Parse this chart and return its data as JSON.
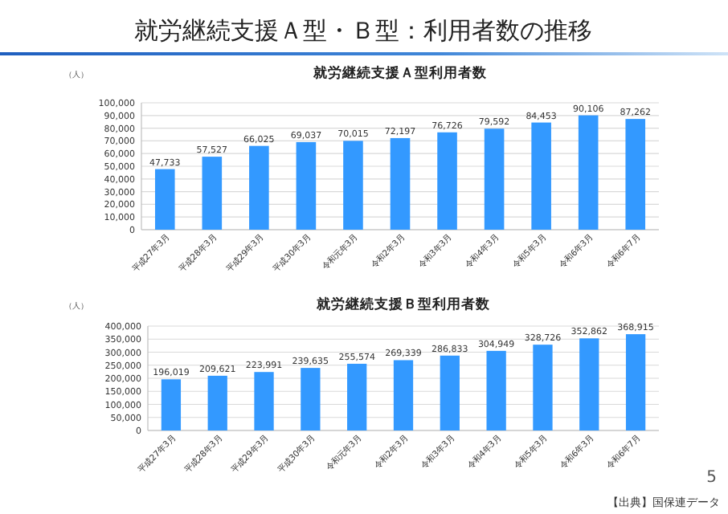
{
  "chart_data": [
    {
      "type": "bar",
      "title": "就労継続支援Ａ型利用者数",
      "ylabel": "（人）",
      "annotations": [
        "就労継続支援Ａ型・Ｂ型：利用者数の推移"
      ],
      "categories": [
        "平成27年3月",
        "平成28年3月",
        "平成29年3月",
        "平成30年3月",
        "令和元年3月",
        "令和2年3月",
        "令和3年3月",
        "令和4年3月",
        "令和5年3月",
        "令和6年3月",
        "令和6年7月"
      ],
      "values": [
        47733,
        57527,
        66025,
        69037,
        70015,
        72197,
        76726,
        79592,
        84453,
        90106,
        87262
      ],
      "value_labels": [
        "47,733",
        "57,527",
        "66,025",
        "69,037",
        "70,015",
        "72,197",
        "76,726",
        "79,592",
        "84,453",
        "90,106",
        "87,262"
      ],
      "color": "#3399ff",
      "ylim": [
        0,
        100000
      ],
      "yticks": [
        {
          "value": 0,
          "label": "0"
        },
        {
          "value": 10000,
          "label": "10,000"
        },
        {
          "value": 20000,
          "label": "20,000"
        },
        {
          "value": 30000,
          "label": "30,000"
        },
        {
          "value": 40000,
          "label": "40,000"
        },
        {
          "value": 50000,
          "label": "50,000"
        },
        {
          "value": 60000,
          "label": "60,000"
        },
        {
          "value": 70000,
          "label": "70,000"
        },
        {
          "value": 80000,
          "label": "80,000"
        },
        {
          "value": 90000,
          "label": "90,000"
        },
        {
          "value": 100000,
          "label": "100,000"
        }
      ],
      "grid": "y"
    },
    {
      "type": "bar",
      "title": "就労継続支援Ｂ型利用者数",
      "ylabel": "（人）",
      "annotations": [
        "【出典】国保連データ",
        "5"
      ],
      "categories": [
        "平成27年3月",
        "平成28年3月",
        "平成29年3月",
        "平成30年3月",
        "令和元年3月",
        "令和2年3月",
        "令和3年3月",
        "令和4年3月",
        "令和5年3月",
        "令和6年3月",
        "令和6年7月"
      ],
      "values": [
        196019,
        209621,
        223991,
        239635,
        255574,
        269339,
        286833,
        304949,
        328726,
        352862,
        368915
      ],
      "value_labels": [
        "196,019",
        "209,621",
        "223,991",
        "239,635",
        "255,574",
        "269,339",
        "286,833",
        "304,949",
        "328,726",
        "352,862",
        "368,915"
      ],
      "color": "#3399ff",
      "ylim": [
        0,
        400000
      ],
      "yticks": [
        {
          "value": 0,
          "label": "0"
        },
        {
          "value": 50000,
          "label": "50,000"
        },
        {
          "value": 100000,
          "label": "100,000"
        },
        {
          "value": 150000,
          "label": "150,000"
        },
        {
          "value": 200000,
          "label": "200,000"
        },
        {
          "value": 250000,
          "label": "250,000"
        },
        {
          "value": 300000,
          "label": "300,000"
        },
        {
          "value": 350000,
          "label": "350,000"
        },
        {
          "value": 400000,
          "label": "400,000"
        }
      ],
      "grid": "y"
    }
  ]
}
